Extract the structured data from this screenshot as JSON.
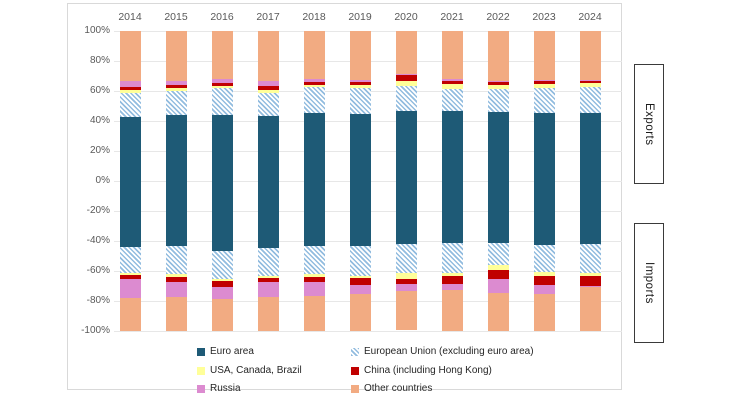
{
  "side_labels": {
    "exports": "Exports",
    "imports": "Imports"
  },
  "axis": {
    "y_ticks": [
      "100%",
      "80%",
      "60%",
      "40%",
      "20%",
      "0%",
      "-20%",
      "-40%",
      "-60%",
      "-80%",
      "-100%"
    ],
    "tick_color": "#595959",
    "grid_color": "#e7e7e7"
  },
  "chart_data": {
    "type": "bar",
    "subtype": "stacked-mirrored",
    "title": "",
    "xlabel": "",
    "ylabel": "",
    "ylim": [
      -100,
      100
    ],
    "grid": true,
    "legend_position": "bottom",
    "categories": [
      "2014",
      "2015",
      "2016",
      "2017",
      "2018",
      "2019",
      "2020",
      "2021",
      "2022",
      "2023",
      "2024"
    ],
    "units": "% share",
    "series": [
      {
        "name": "Euro area",
        "color": "#1e5a76",
        "pattern": "solid",
        "exports": [
          43,
          44,
          44,
          43.5,
          45.5,
          45,
          47,
          46.5,
          46,
          45.5,
          45.5
        ],
        "imports": [
          44,
          43.5,
          46.5,
          44.5,
          43.5,
          43,
          42,
          41.5,
          41.5,
          42.5,
          42
        ]
      },
      {
        "name": "European Union (excluding euro area)",
        "color": "#9dc3e6",
        "pattern": "diagonal-hatch",
        "exports": [
          16,
          16,
          18,
          15.5,
          17,
          17,
          16.5,
          15,
          15.5,
          16.5,
          17
        ],
        "imports": [
          17,
          18.5,
          18.5,
          18.5,
          18.5,
          20,
          19.5,
          20,
          14.5,
          18,
          19
        ]
      },
      {
        "name": "USA, Canada, Brazil",
        "color": "#ffff99",
        "pattern": "solid",
        "exports": [
          2,
          2,
          1.5,
          2,
          1.5,
          2,
          3.5,
          3,
          2.5,
          3,
          3
        ],
        "imports": [
          1.5,
          2,
          1.5,
          1.5,
          2,
          1.5,
          3.5,
          2,
          3,
          3,
          2.5
        ]
      },
      {
        "name": "China (including Hong Kong)",
        "color": "#c00000",
        "pattern": "solid",
        "exports": [
          2,
          2,
          2,
          2.5,
          2,
          2,
          3.5,
          2.5,
          2,
          2,
          1.5
        ],
        "imports": [
          2.5,
          3.5,
          4,
          3,
          3.5,
          4.5,
          3.5,
          5,
          6.5,
          5.5,
          6.5
        ]
      },
      {
        "name": "Russia",
        "color": "#dc8bd0",
        "pattern": "solid",
        "exports": [
          4,
          3,
          2.5,
          3,
          2,
          1.5,
          1,
          1,
          1,
          0.5,
          0.5
        ],
        "imports": [
          13,
          10,
          8,
          10,
          9,
          6.5,
          5,
          4,
          9,
          6,
          0.5
        ]
      },
      {
        "name": "Other countries",
        "color": "#f2ab82",
        "pattern": "solid",
        "exports": [
          33,
          33,
          32,
          33.5,
          32,
          32.5,
          28.5,
          32,
          33,
          32.5,
          32.5
        ],
        "imports": [
          22,
          22.5,
          21.5,
          22.5,
          23.5,
          24.5,
          26,
          27.5,
          25.5,
          25,
          29.5
        ]
      }
    ]
  }
}
